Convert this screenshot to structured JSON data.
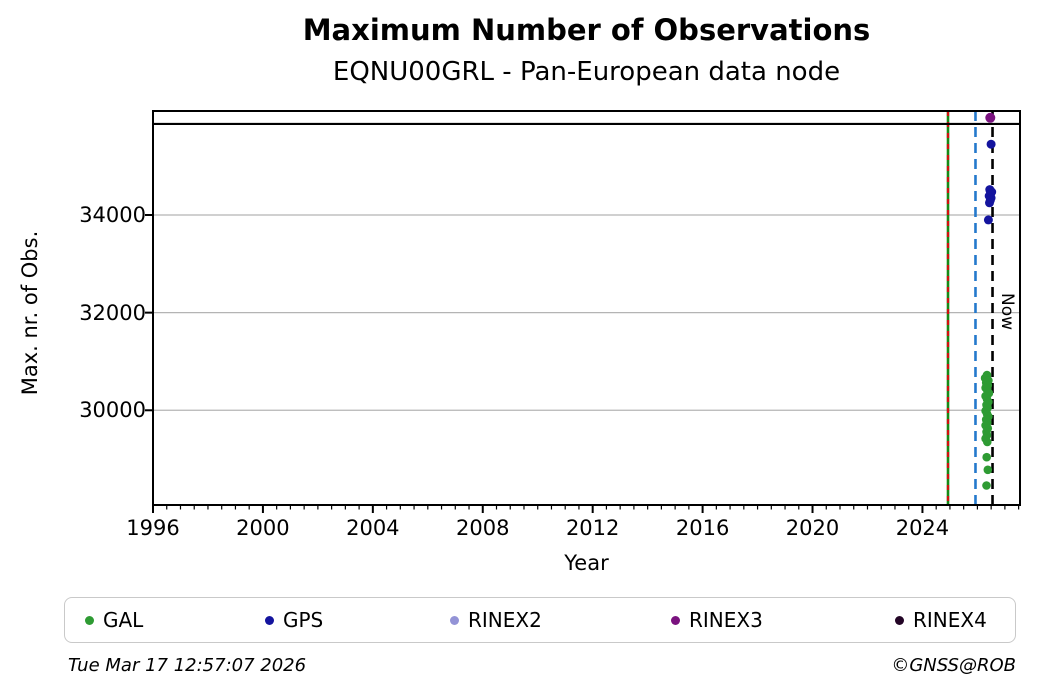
{
  "page": {
    "title": "Maximum Number of Observations",
    "subtitle": "EQNU00GRL - Pan-European data node"
  },
  "footer": {
    "timestamp": "Tue Mar 17 12:57:07 2026",
    "credit": "©GNSS@ROB"
  },
  "legend": {
    "items": [
      {
        "label": "GAL",
        "color": "#2e9b33"
      },
      {
        "label": "GPS",
        "color": "#14149e"
      },
      {
        "label": "RINEX2",
        "color": "#9393d6"
      },
      {
        "label": "RINEX3",
        "color": "#7a127f"
      },
      {
        "label": "RINEX4",
        "color": "#230526"
      }
    ]
  },
  "chart_data": {
    "type": "scatter",
    "title": "Maximum Number of Observations",
    "subtitle": "EQNU00GRL - Pan-European data node",
    "xlabel": "Year",
    "ylabel": "Max. nr. of Obs.",
    "xlim": [
      1996,
      2027.55
    ],
    "ylim": [
      28060,
      36130
    ],
    "x_major_ticks": [
      1996,
      2000,
      2004,
      2008,
      2012,
      2016,
      2020,
      2024
    ],
    "x_minor_tick_step": 0.5,
    "y_major_ticks": [
      30000,
      32000,
      34000
    ],
    "grid": "horizontal-only",
    "grid_color": "#b4b4b4",
    "legend_position": "bottom",
    "reference_line": {
      "value": 35865,
      "color": "#000000",
      "style": "solid"
    },
    "vertical_lines": [
      {
        "name": "start-line",
        "x": 2024.93,
        "style": "solid-with-red-dashes",
        "color": "#168a16",
        "overlay_color": "#d40f0f"
      },
      {
        "name": "latency-line",
        "x": 2025.93,
        "style": "dashed",
        "color": "#2479cc"
      },
      {
        "name": "now-line",
        "x": 2026.55,
        "style": "dashed",
        "color": "#000000",
        "label": "Now"
      }
    ],
    "series": [
      {
        "name": "GAL",
        "color": "#2e9b33",
        "marker_radius": 4.3,
        "points": [
          [
            2026.35,
            30720
          ],
          [
            2026.28,
            30660
          ],
          [
            2026.4,
            30610
          ],
          [
            2026.32,
            30560
          ],
          [
            2026.38,
            30510
          ],
          [
            2026.3,
            30460
          ],
          [
            2026.36,
            30410
          ],
          [
            2026.42,
            30350
          ],
          [
            2026.3,
            30290
          ],
          [
            2026.35,
            30230
          ],
          [
            2026.4,
            30170
          ],
          [
            2026.33,
            30110
          ],
          [
            2026.37,
            30050
          ],
          [
            2026.3,
            29990
          ],
          [
            2026.35,
            29930
          ],
          [
            2026.4,
            29870
          ],
          [
            2026.32,
            29810
          ],
          [
            2026.36,
            29750
          ],
          [
            2026.3,
            29690
          ],
          [
            2026.38,
            29630
          ],
          [
            2026.33,
            29560
          ],
          [
            2026.35,
            29490
          ],
          [
            2026.3,
            29420
          ],
          [
            2026.36,
            29350
          ],
          [
            2026.34,
            29040
          ],
          [
            2026.38,
            28780
          ],
          [
            2026.33,
            28460
          ]
        ]
      },
      {
        "name": "GPS",
        "color": "#14149e",
        "marker_radius": 4.5,
        "points": [
          [
            2026.5,
            35450
          ],
          [
            2026.45,
            34520
          ],
          [
            2026.52,
            34470
          ],
          [
            2026.47,
            34430
          ],
          [
            2026.43,
            34390
          ],
          [
            2026.5,
            34350
          ],
          [
            2026.47,
            34300
          ],
          [
            2026.44,
            34250
          ],
          [
            2026.4,
            33900
          ]
        ]
      },
      {
        "name": "RINEX2",
        "color": "#9393d6",
        "marker_radius": 4.3,
        "points": []
      },
      {
        "name": "RINEX3",
        "color": "#7a127f",
        "marker_radius": 5.0,
        "points": [
          [
            2026.47,
            35990
          ]
        ]
      },
      {
        "name": "RINEX4",
        "color": "#230526",
        "marker_radius": 4.3,
        "points": []
      }
    ]
  }
}
